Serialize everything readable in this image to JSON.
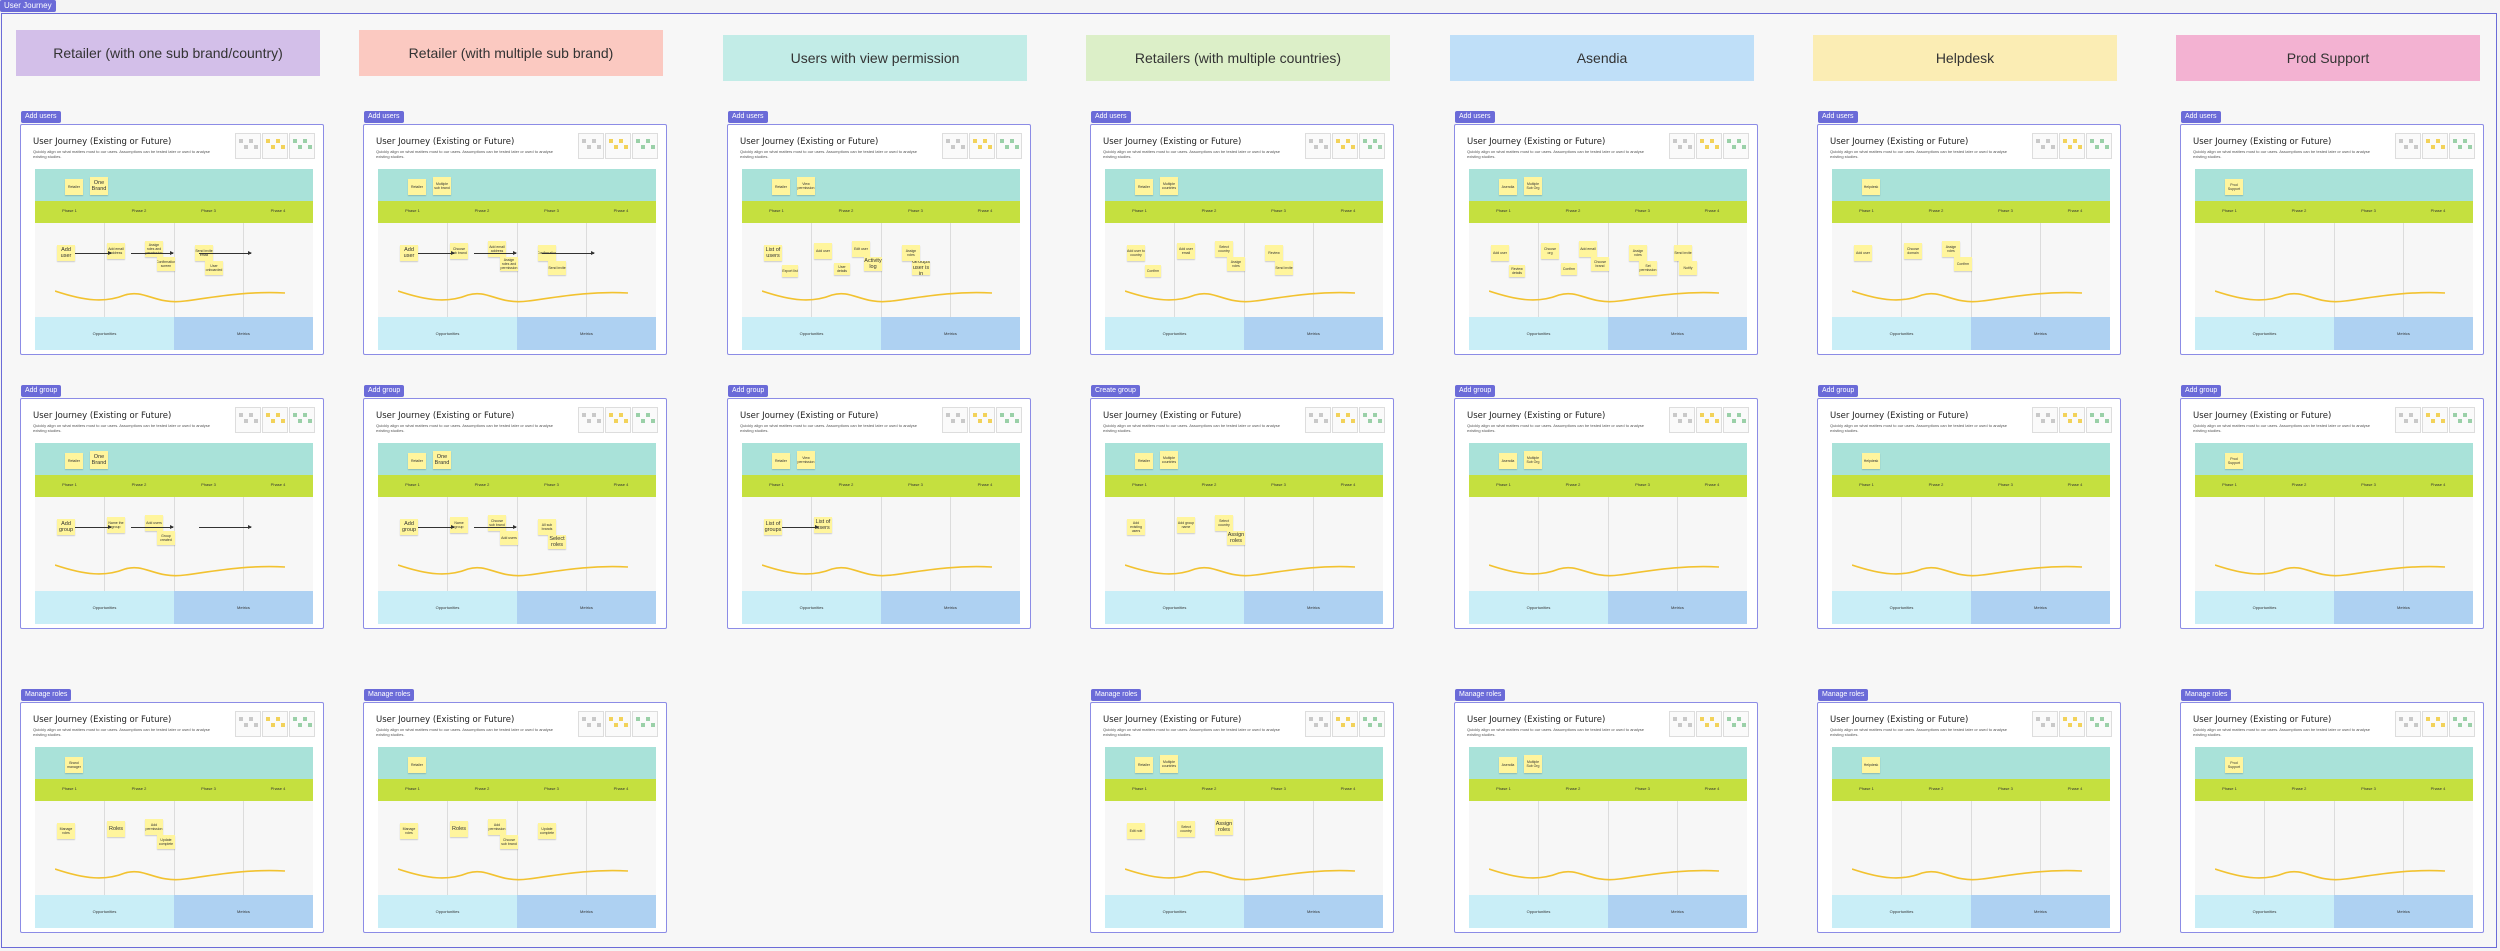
{
  "board": {
    "title": "User Journey"
  },
  "common": {
    "uj_title": "User Journey (Existing or Future)",
    "uj_desc": "Quickly align on what matters most to our users. Assumptions can be tested later or used to analyse existing studies.",
    "phases": [
      "Phase 1",
      "Phase 2",
      "Phase 3",
      "Phase 4"
    ],
    "opportunities": "Opportunities",
    "metrics": "Metrics"
  },
  "colors": {
    "frame_border": "#8c8ce6",
    "tag": "#6b6bd8",
    "persona_row": "#a9e2d9",
    "phase_row": "#c5e03f",
    "opportunities": "#c9eef7",
    "metrics": "#aed1f2",
    "sticky": "#fff59d",
    "wave": "#f2c230"
  },
  "personas": [
    {
      "name": "Retailer (with one sub brand/country)",
      "color": "#d3bfe9"
    },
    {
      "name": "Retailer (with multiple sub brand)",
      "color": "#fbc9c1"
    },
    {
      "name": "Users with view permission",
      "color": "#c2ece7"
    },
    {
      "name": "Retailers (with multiple countries)",
      "color": "#dcefc8"
    },
    {
      "name": "Asendia",
      "color": "#bfdff8"
    },
    {
      "name": "Helpdesk",
      "color": "#fbedb4"
    },
    {
      "name": "Prod Support",
      "color": "#f3b2d2"
    }
  ],
  "journeys": [
    {
      "col": 0,
      "row": 0,
      "tag": "Add users",
      "stickies": [
        {
          "t": "Retailer"
        },
        {
          "t": "One Brand",
          "big": true
        },
        {
          "t": "Add user",
          "big": true
        },
        {
          "t": "Add email address"
        },
        {
          "t": "Assign roles and permission"
        },
        {
          "t": "Confirmation screen"
        },
        {
          "t": "Send invite email"
        },
        {
          "t": "User onboarded"
        }
      ],
      "arrows": 3
    },
    {
      "col": 1,
      "row": 0,
      "tag": "Add users",
      "stickies": [
        {
          "t": "Retailer"
        },
        {
          "t": "Multiple sub brand"
        },
        {
          "t": "Add user",
          "big": true
        },
        {
          "t": "Choose sub brand"
        },
        {
          "t": "Add email address"
        },
        {
          "t": "Assign roles and permission"
        },
        {
          "t": "Confirmation"
        },
        {
          "t": "Send invite"
        }
      ],
      "arrows": 3
    },
    {
      "col": 2,
      "row": 0,
      "tag": "Add users",
      "stickies": [
        {
          "t": "Retailer"
        },
        {
          "t": "View permission"
        },
        {
          "t": "List of users",
          "big": true
        },
        {
          "t": "Add user"
        },
        {
          "t": "Edit user"
        },
        {
          "t": "Activity log",
          "big": true
        },
        {
          "t": "Assign roles"
        },
        {
          "t": "Groups user is in",
          "big": true
        },
        {
          "t": "Export list"
        },
        {
          "t": "User details"
        }
      ],
      "arrows": 0
    },
    {
      "col": 3,
      "row": 0,
      "tag": "Add users",
      "stickies": [
        {
          "t": "Retailer"
        },
        {
          "t": "Multiple countries"
        },
        {
          "t": "Add user to country"
        },
        {
          "t": "Add user email"
        },
        {
          "t": "Select country"
        },
        {
          "t": "Assign roles"
        },
        {
          "t": "Review"
        },
        {
          "t": "Send invite"
        },
        {
          "t": "Confirm"
        }
      ],
      "arrows": 0
    },
    {
      "col": 4,
      "row": 0,
      "tag": "Add users",
      "stickies": [
        {
          "t": "Asendia"
        },
        {
          "t": "Multiple Sub Org"
        },
        {
          "t": "Add user"
        },
        {
          "t": "Choose org"
        },
        {
          "t": "Add email"
        },
        {
          "t": "Choose brand"
        },
        {
          "t": "Assign roles"
        },
        {
          "t": "Set permission"
        },
        {
          "t": "Review details"
        },
        {
          "t": "Confirm"
        },
        {
          "t": "Send invite"
        },
        {
          "t": "Notify"
        }
      ],
      "arrows": 0
    },
    {
      "col": 5,
      "row": 0,
      "tag": "Add users",
      "stickies": [
        {
          "t": "Helpdesk"
        },
        {
          "t": "Add user"
        },
        {
          "t": "Choose domain"
        },
        {
          "t": "Assign roles"
        },
        {
          "t": "Confirm"
        }
      ],
      "arrows": 0
    },
    {
      "col": 6,
      "row": 0,
      "tag": "Add users",
      "stickies": [
        {
          "t": "Prod Support"
        }
      ],
      "arrows": 0
    },
    {
      "col": 0,
      "row": 1,
      "tag": "Add group",
      "stickies": [
        {
          "t": "Retailer"
        },
        {
          "t": "One Brand",
          "big": true
        },
        {
          "t": "Add group",
          "big": true
        },
        {
          "t": "Name the group"
        },
        {
          "t": "Add users"
        },
        {
          "t": "Group created"
        }
      ],
      "arrows": 3
    },
    {
      "col": 1,
      "row": 1,
      "tag": "Add group",
      "stickies": [
        {
          "t": "Retailer"
        },
        {
          "t": "One Brand",
          "big": true
        },
        {
          "t": "Add group",
          "big": true
        },
        {
          "t": "Name group"
        },
        {
          "t": "Choose sub brand"
        },
        {
          "t": "Add users"
        },
        {
          "t": "All sub brands"
        },
        {
          "t": "Select roles",
          "big": true
        }
      ],
      "arrows": 2
    },
    {
      "col": 2,
      "row": 1,
      "tag": "Add group",
      "stickies": [
        {
          "t": "Retailer"
        },
        {
          "t": "View permission"
        },
        {
          "t": "List of groups",
          "big": true
        },
        {
          "t": "List of users",
          "big": true
        }
      ],
      "arrows": 1
    },
    {
      "col": 3,
      "row": 1,
      "tag": "Create group",
      "stickies": [
        {
          "t": "Retailer"
        },
        {
          "t": "Multiple countries"
        },
        {
          "t": "Add existing users"
        },
        {
          "t": "Add group name"
        },
        {
          "t": "Select country"
        },
        {
          "t": "Assign roles",
          "big": true
        }
      ],
      "arrows": 0
    },
    {
      "col": 4,
      "row": 1,
      "tag": "Add group",
      "stickies": [
        {
          "t": "Asendia"
        },
        {
          "t": "Multiple Sub Org"
        }
      ],
      "arrows": 0
    },
    {
      "col": 5,
      "row": 1,
      "tag": "Add group",
      "stickies": [
        {
          "t": "Helpdesk"
        }
      ],
      "arrows": 0
    },
    {
      "col": 6,
      "row": 1,
      "tag": "Add group",
      "stickies": [
        {
          "t": "Prod Support"
        }
      ],
      "arrows": 0
    },
    {
      "col": 0,
      "row": 2,
      "tag": "Manage roles",
      "stickies": [
        {
          "t": "Brand manager"
        },
        {
          "t": "Manage roles"
        },
        {
          "t": "Roles",
          "big": true
        },
        {
          "t": "Add permission"
        },
        {
          "t": "Update complete"
        }
      ],
      "arrows": 0
    },
    {
      "col": 1,
      "row": 2,
      "tag": "Manage roles",
      "stickies": [
        {
          "t": "Retailer"
        },
        {
          "t": "Manage roles"
        },
        {
          "t": "Roles",
          "big": true
        },
        {
          "t": "Add permission"
        },
        {
          "t": "Choose sub brand"
        },
        {
          "t": "Update complete"
        }
      ],
      "arrows": 0
    },
    {
      "col": 3,
      "row": 2,
      "tag": "Manage roles",
      "stickies": [
        {
          "t": "Retailer"
        },
        {
          "t": "Multiple countries"
        },
        {
          "t": "Edit role"
        },
        {
          "t": "Select country"
        },
        {
          "t": "Assign roles",
          "big": true
        }
      ],
      "arrows": 0
    },
    {
      "col": 4,
      "row": 2,
      "tag": "Manage roles",
      "stickies": [
        {
          "t": "Asendia"
        },
        {
          "t": "Multiple Sub Org"
        }
      ],
      "arrows": 0
    },
    {
      "col": 5,
      "row": 2,
      "tag": "Manage roles",
      "stickies": [
        {
          "t": "Helpdesk"
        }
      ],
      "arrows": 0
    },
    {
      "col": 6,
      "row": 2,
      "tag": "Manage roles",
      "stickies": [
        {
          "t": "Prod Support"
        }
      ],
      "arrows": 0
    }
  ]
}
